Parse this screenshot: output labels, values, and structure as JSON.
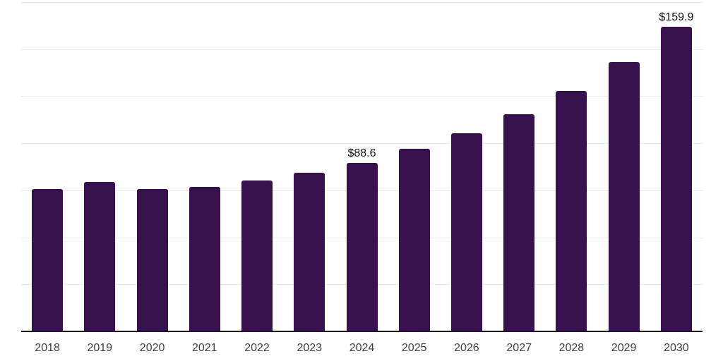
{
  "chart_data": {
    "type": "bar",
    "title": "",
    "xlabel": "",
    "ylabel": "",
    "categories": [
      "2018",
      "2019",
      "2020",
      "2021",
      "2022",
      "2023",
      "2024",
      "2025",
      "2026",
      "2027",
      "2028",
      "2029",
      "2030"
    ],
    "values": [
      75.0,
      78.4,
      74.8,
      75.9,
      79.4,
      83.2,
      88.6,
      96.1,
      104.0,
      114.1,
      126.5,
      141.4,
      159.9
    ],
    "data_labels": [
      "",
      "",
      "",
      "",
      "",
      "",
      "$88.6",
      "",
      "",
      "",
      "",
      "",
      "$159.9"
    ],
    "ylim": [
      0,
      173
    ],
    "y_axis_labels_shown": false,
    "gridline_intervals": 7,
    "grid": "horizontal",
    "legend": "none",
    "colors": {
      "bar": "#36114D",
      "gridline": "#EDEDED",
      "axis_line": "#1A1A1A",
      "tick_label": "#404040",
      "data_label": "#111111",
      "background": "#FFFFFF"
    }
  }
}
